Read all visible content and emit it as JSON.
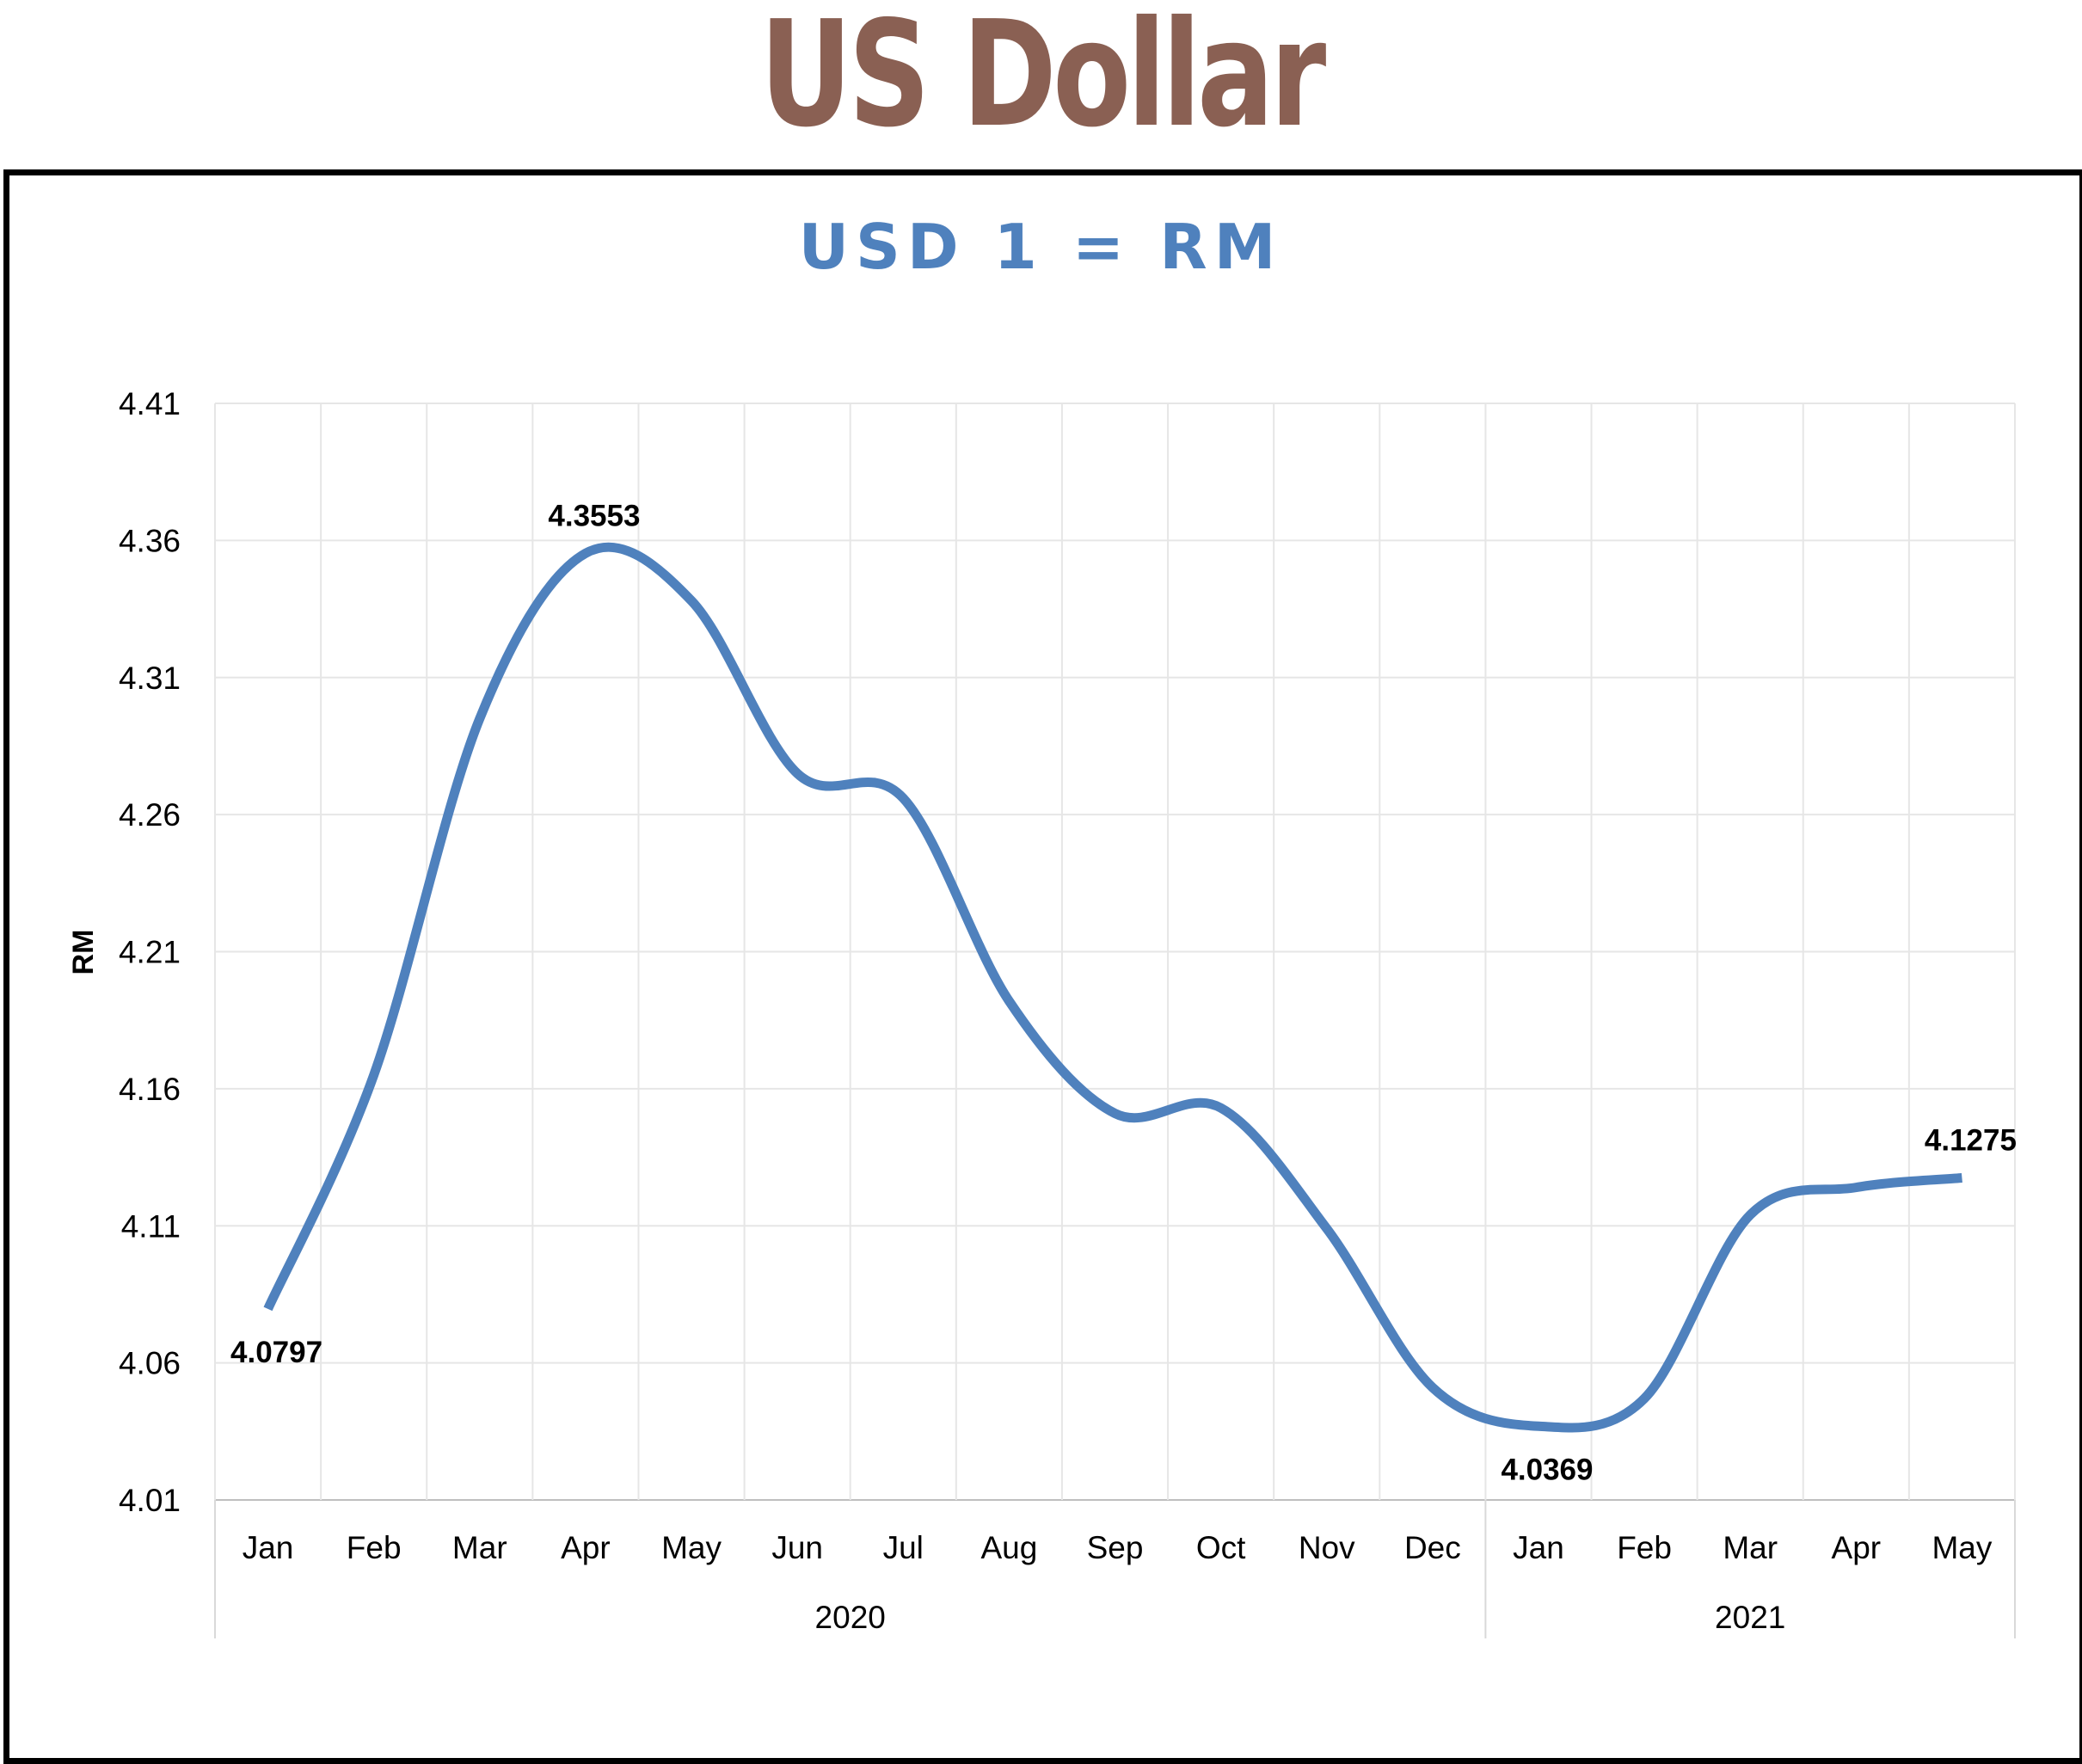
{
  "page": {
    "title": "US Dollar"
  },
  "chart_data": {
    "type": "line",
    "title": "USD 1 = RM",
    "xlabel": "",
    "ylabel": "RM",
    "ylim": [
      4.01,
      4.41
    ],
    "yticks": [
      "4.01",
      "4.06",
      "4.11",
      "4.16",
      "4.21",
      "4.26",
      "4.31",
      "4.36",
      "4.41"
    ],
    "categories": [
      "Jan",
      "Feb",
      "Mar",
      "Apr",
      "May",
      "Jun",
      "Jul",
      "Aug",
      "Sep",
      "Oct",
      "Nov",
      "Dec",
      "Jan",
      "Feb",
      "Mar",
      "Apr",
      "May"
    ],
    "groups": [
      {
        "label": "2020",
        "count": 12
      },
      {
        "label": "2021",
        "count": 5
      }
    ],
    "series": [
      {
        "color": "#4f81bd",
        "smooth": true,
        "values": [
          4.0797,
          4.165,
          4.295,
          4.3553,
          4.338,
          4.275,
          4.266,
          4.192,
          4.151,
          4.153,
          4.109,
          4.051,
          4.0369,
          4.047,
          4.114,
          4.124,
          4.1275
        ]
      }
    ],
    "data_labels": [
      {
        "index": 0,
        "text": "4.0797",
        "position": "below"
      },
      {
        "index": 3,
        "text": "4.3553",
        "position": "above"
      },
      {
        "index": 12,
        "text": "4.0369",
        "position": "below"
      },
      {
        "index": 16,
        "text": "4.1275",
        "position": "above"
      }
    ],
    "grid": true,
    "legend": "none"
  }
}
